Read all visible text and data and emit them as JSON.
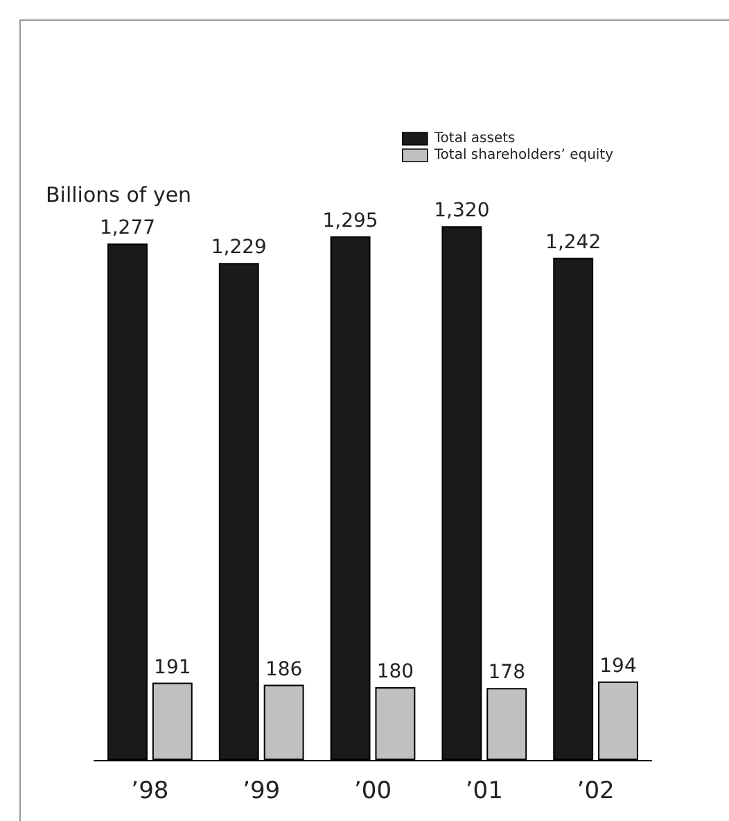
{
  "chart_data": {
    "type": "bar",
    "title": "Billions of yen",
    "categories": [
      "’98",
      "’99",
      "’00",
      "’01",
      "’02"
    ],
    "series": [
      {
        "name": "Total assets",
        "color": "#1a1a1a",
        "values": [
          1277,
          1229,
          1295,
          1320,
          1242
        ],
        "value_labels": [
          "1,277",
          "1,229",
          "1,295",
          "1,320",
          "1,242"
        ]
      },
      {
        "name": "Total shareholders’ equity",
        "color": "#c0c0c0",
        "values": [
          191,
          186,
          180,
          178,
          194
        ]
      }
    ],
    "data_labels": true,
    "legend": "top right"
  }
}
